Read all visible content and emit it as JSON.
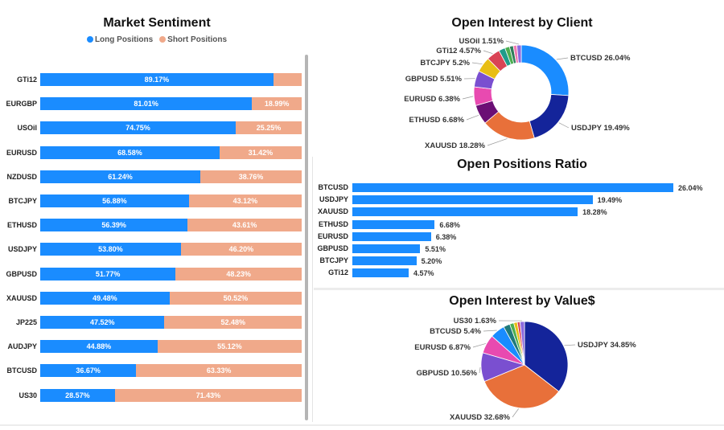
{
  "market_sentiment": {
    "title": "Market Sentiment",
    "legend": [
      {
        "name": "Long Positions",
        "color": "#1a8cff"
      },
      {
        "name": "Short Positions",
        "color": "#f0a98a"
      }
    ],
    "chart_data": {
      "type": "bar",
      "stacked": true,
      "orientation": "horizontal",
      "categories": [
        "GTi12",
        "EURGBP",
        "USOil",
        "EURUSD",
        "NZDUSD",
        "BTCJPY",
        "ETHUSD",
        "USDJPY",
        "GBPUSD",
        "XAUUSD",
        "JP225",
        "AUDJPY",
        "BTCUSD",
        "US30"
      ],
      "series": [
        {
          "name": "Long Positions",
          "values": [
            89.17,
            81.01,
            74.75,
            68.58,
            61.24,
            56.88,
            56.39,
            53.8,
            51.77,
            49.48,
            47.52,
            44.88,
            36.67,
            28.57
          ],
          "labels": [
            "89.17%",
            "81.01%",
            "74.75%",
            "68.58%",
            "61.24%",
            "56.88%",
            "56.39%",
            "53.80%",
            "51.77%",
            "49.48%",
            "47.52%",
            "44.88%",
            "36.67%",
            "28.57%"
          ]
        },
        {
          "name": "Short Positions",
          "values": [
            10.83,
            18.99,
            25.25,
            31.42,
            38.76,
            43.12,
            43.61,
            46.2,
            48.23,
            50.52,
            52.48,
            55.12,
            63.33,
            71.43
          ],
          "labels": [
            "",
            "18.99%",
            "25.25%",
            "31.42%",
            "38.76%",
            "43.12%",
            "43.61%",
            "46.20%",
            "48.23%",
            "50.52%",
            "52.48%",
            "55.12%",
            "63.33%",
            "71.43%"
          ]
        }
      ],
      "xlim": [
        0,
        100
      ]
    }
  },
  "open_interest_client": {
    "title": "Open Interest by Client",
    "chart_data": {
      "type": "pie",
      "donut": true,
      "slices": [
        {
          "label": "BTCUSD 26.04%",
          "value": 26.04,
          "color": "#1a8cff"
        },
        {
          "label": "USDJPY 19.49%",
          "value": 19.49,
          "color": "#14249a"
        },
        {
          "label": "XAUUSD 18.28%",
          "value": 18.28,
          "color": "#e8703a"
        },
        {
          "label": "ETHUSD 6.68%",
          "value": 6.68,
          "color": "#6b0f75"
        },
        {
          "label": "EURUSD 6.38%",
          "value": 6.38,
          "color": "#e84ab0"
        },
        {
          "label": "GBPUSD 5.51%",
          "value": 5.51,
          "color": "#7a4fd0"
        },
        {
          "label": "BTCJPY 5.2%",
          "value": 5.2,
          "color": "#e8be14"
        },
        {
          "label": "GTi12 4.57%",
          "value": 4.57,
          "color": "#d94455"
        },
        {
          "label": "",
          "value": 2.2,
          "color": "#1f9c8a"
        },
        {
          "label": "",
          "value": 1.6,
          "color": "#4cae50"
        },
        {
          "label": "",
          "value": 1.3,
          "color": "#2e7d5a"
        },
        {
          "label": "",
          "value": 1.2,
          "color": "#f07bb0"
        },
        {
          "label": "USOil 1.51%",
          "value": 1.51,
          "color": "#8c6adf"
        }
      ]
    }
  },
  "open_positions_ratio": {
    "title": "Open Positions Ratio",
    "chart_data": {
      "type": "bar",
      "orientation": "horizontal",
      "categories": [
        "BTCUSD",
        "USDJPY",
        "XAUUSD",
        "ETHUSD",
        "EURUSD",
        "GBPUSD",
        "BTCJPY",
        "GTi12"
      ],
      "values": [
        26.04,
        19.49,
        18.28,
        6.68,
        6.38,
        5.51,
        5.2,
        4.57
      ],
      "labels": [
        "26.04%",
        "19.49%",
        "18.28%",
        "6.68%",
        "6.38%",
        "5.51%",
        "5.20%",
        "4.57%"
      ],
      "color": "#1a8cff"
    }
  },
  "open_interest_value": {
    "title": "Open Interest by Value$",
    "chart_data": {
      "type": "pie",
      "slices": [
        {
          "label": "USDJPY 34.85%",
          "value": 34.85,
          "color": "#14249a"
        },
        {
          "label": "XAUUSD 32.68%",
          "value": 32.68,
          "color": "#e8703a"
        },
        {
          "label": "GBPUSD 10.56%",
          "value": 10.56,
          "color": "#7a4fd0"
        },
        {
          "label": "EURUSD 6.87%",
          "value": 6.87,
          "color": "#e84ab0"
        },
        {
          "label": "BTCUSD 5.4%",
          "value": 5.4,
          "color": "#1a8cff"
        },
        {
          "label": "",
          "value": 2.4,
          "color": "#1f7a7a"
        },
        {
          "label": "",
          "value": 1.5,
          "color": "#4cae50"
        },
        {
          "label": "",
          "value": 1.3,
          "color": "#e8be14"
        },
        {
          "label": "",
          "value": 1.0,
          "color": "#d94455"
        },
        {
          "label": "US30 1.63%",
          "value": 1.63,
          "color": "#8c6adf"
        }
      ]
    }
  }
}
